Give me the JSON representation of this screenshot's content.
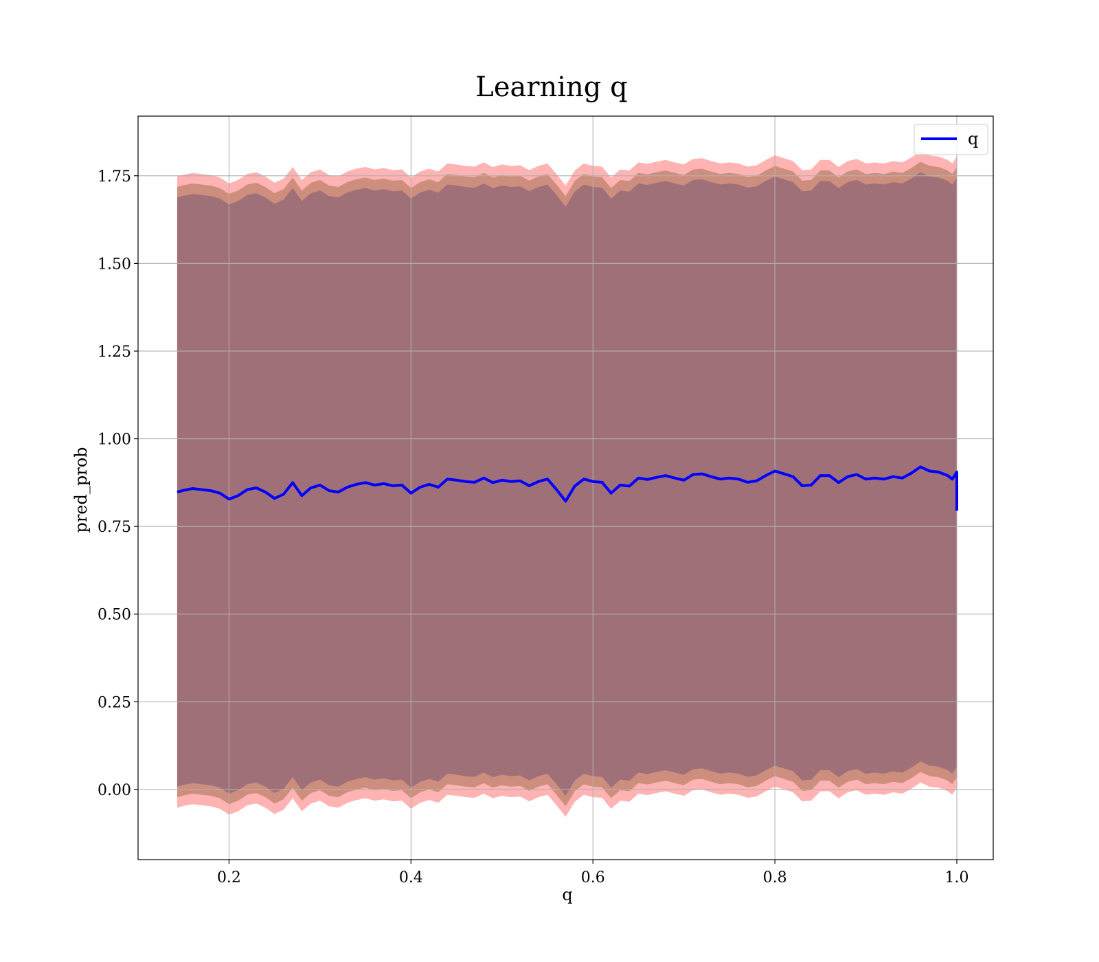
{
  "chart_data": {
    "type": "line",
    "title": "Learning q",
    "xlabel": "q",
    "ylabel": "pred_prob",
    "xlim": [
      0.1,
      1.04
    ],
    "ylim": [
      -0.2,
      1.92
    ],
    "x_ticks": [
      {
        "value": 0.2,
        "label": "0.2"
      },
      {
        "value": 0.4,
        "label": "0.4"
      },
      {
        "value": 0.6,
        "label": "0.6"
      },
      {
        "value": 0.8,
        "label": "0.8"
      },
      {
        "value": 1.0,
        "label": "1.0"
      }
    ],
    "y_ticks": [
      {
        "value": 0.0,
        "label": "0.00"
      },
      {
        "value": 0.25,
        "label": "0.25"
      },
      {
        "value": 0.5,
        "label": "0.50"
      },
      {
        "value": 0.75,
        "label": "0.75"
      },
      {
        "value": 1.0,
        "label": "1.00"
      },
      {
        "value": 1.25,
        "label": "1.25"
      },
      {
        "value": 1.5,
        "label": "1.50"
      },
      {
        "value": 1.75,
        "label": "1.75"
      }
    ],
    "grid": true,
    "legend": {
      "position": "top-right",
      "entries": [
        "q"
      ]
    },
    "colors": {
      "line": "#0000ff",
      "band_outer": "#ff9a9a",
      "band_middle": "#c98a78",
      "band_inner": "#a07079",
      "grid": "#b0b0b0"
    },
    "band_half_widths": {
      "outer": 0.9,
      "middle": 0.87,
      "inner": 0.84
    },
    "series": [
      {
        "name": "q",
        "x": [
          0.143,
          0.15,
          0.16,
          0.17,
          0.18,
          0.19,
          0.2,
          0.21,
          0.22,
          0.23,
          0.24,
          0.25,
          0.26,
          0.27,
          0.28,
          0.29,
          0.3,
          0.31,
          0.32,
          0.33,
          0.34,
          0.35,
          0.36,
          0.37,
          0.38,
          0.39,
          0.4,
          0.41,
          0.42,
          0.43,
          0.44,
          0.45,
          0.46,
          0.47,
          0.48,
          0.49,
          0.5,
          0.51,
          0.52,
          0.53,
          0.54,
          0.55,
          0.56,
          0.57,
          0.58,
          0.59,
          0.6,
          0.61,
          0.62,
          0.63,
          0.64,
          0.65,
          0.66,
          0.67,
          0.68,
          0.69,
          0.7,
          0.71,
          0.72,
          0.73,
          0.74,
          0.75,
          0.76,
          0.77,
          0.78,
          0.79,
          0.8,
          0.81,
          0.82,
          0.83,
          0.84,
          0.85,
          0.86,
          0.87,
          0.88,
          0.89,
          0.9,
          0.91,
          0.92,
          0.93,
          0.94,
          0.95,
          0.96,
          0.97,
          0.98,
          0.99,
          0.995,
          1.0,
          1.0
        ],
        "y": [
          0.848,
          0.853,
          0.858,
          0.855,
          0.852,
          0.845,
          0.828,
          0.838,
          0.855,
          0.86,
          0.848,
          0.83,
          0.842,
          0.875,
          0.838,
          0.86,
          0.868,
          0.852,
          0.848,
          0.862,
          0.87,
          0.875,
          0.868,
          0.872,
          0.866,
          0.868,
          0.845,
          0.862,
          0.87,
          0.862,
          0.885,
          0.882,
          0.878,
          0.876,
          0.888,
          0.875,
          0.882,
          0.878,
          0.88,
          0.866,
          0.878,
          0.885,
          0.855,
          0.822,
          0.865,
          0.885,
          0.878,
          0.876,
          0.845,
          0.868,
          0.865,
          0.888,
          0.884,
          0.89,
          0.895,
          0.888,
          0.882,
          0.898,
          0.9,
          0.892,
          0.885,
          0.888,
          0.885,
          0.876,
          0.88,
          0.895,
          0.908,
          0.9,
          0.892,
          0.866,
          0.868,
          0.895,
          0.895,
          0.875,
          0.892,
          0.898,
          0.885,
          0.888,
          0.885,
          0.892,
          0.888,
          0.902,
          0.92,
          0.908,
          0.905,
          0.895,
          0.885,
          0.905,
          0.795
        ]
      }
    ]
  }
}
